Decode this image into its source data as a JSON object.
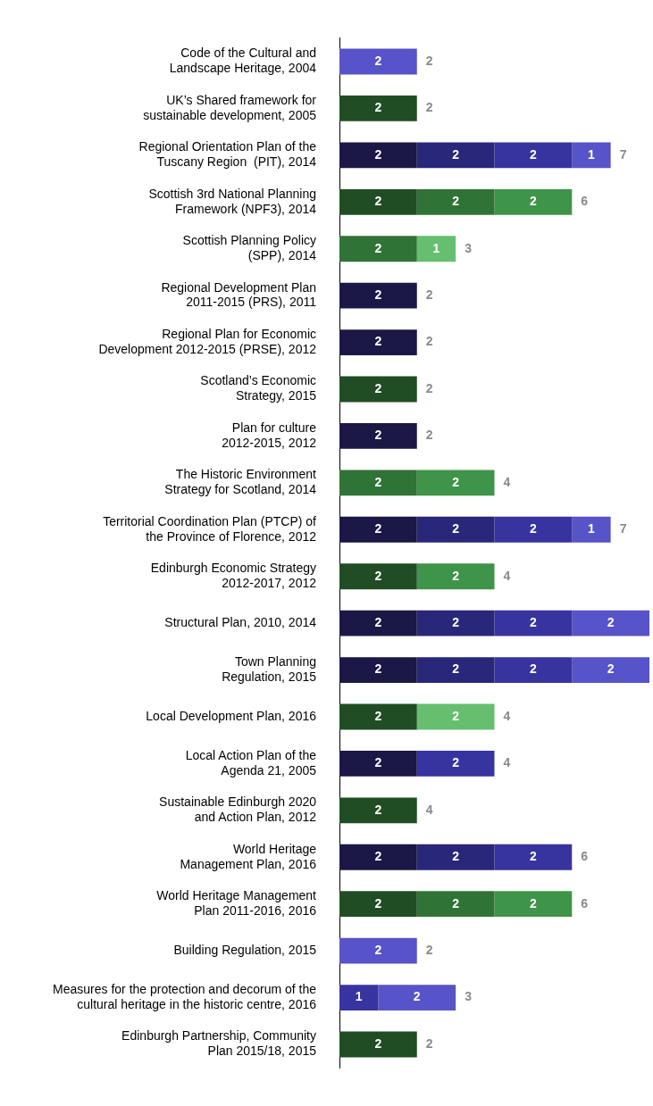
{
  "chart_data": {
    "type": "bar",
    "orientation": "horizontal",
    "stacked": true,
    "grid": false,
    "legend": false,
    "tick_labels": "y",
    "data_labels": true,
    "xlim": [
      0,
      8
    ],
    "categories": [
      "Code of the Cultural and\nLandscape Heritage, 2004",
      "UK’s Shared framework for\nsustainable development, 2005",
      "Regional Orientation Plan of the\nTuscany Region  (PIT), 2014",
      "Scottish 3rd National Planning\nFramework (NPF3), 2014",
      "Scottish Planning Policy\n(SPP), 2014",
      "Regional Development Plan\n2011-2015 (PRS), 2011",
      "Regional Plan for Economic\nDevelopment 2012-2015 (PRSE), 2012",
      "Scotland’s Economic\nStrategy, 2015",
      "Plan for culture\n2012-2015, 2012",
      "The Historic Environment\nStrategy for Scotland, 2014",
      "Territorial Coordination Plan (PTCP) of\nthe Province of Florence, 2012",
      "Edinburgh Economic Strategy\n2012-2017, 2012",
      "Structural Plan, 2010, 2014",
      "Town Planning\nRegulation, 2015",
      "Local Development Plan, 2016",
      "Local Action Plan of the\nAgenda 21, 2005",
      "Sustainable Edinburgh 2020\nand Action Plan, 2012",
      "World Heritage\nManagement Plan, 2016",
      "World Heritage Management\nPlan 2011-2016, 2016",
      "Building Regulation, 2015",
      "Measures for the protection and decorum of the\ncultural heritage in the historic centre, 2016",
      "Edinburgh Partnership, Community\nPlan 2015/18, 2015"
    ],
    "series": [
      {
        "color": "#1b1847",
        "values": [
          null,
          null,
          2,
          null,
          null,
          2,
          2,
          null,
          2,
          null,
          2,
          null,
          2,
          2,
          null,
          2,
          null,
          2,
          null,
          null,
          null,
          null
        ]
      },
      {
        "color": "#29277a",
        "values": [
          null,
          null,
          2,
          null,
          null,
          null,
          null,
          null,
          null,
          null,
          2,
          null,
          2,
          2,
          null,
          null,
          null,
          2,
          null,
          null,
          null,
          null
        ]
      },
      {
        "color": "#3734a0",
        "values": [
          null,
          null,
          2,
          null,
          null,
          null,
          null,
          null,
          null,
          null,
          2,
          null,
          2,
          2,
          null,
          2,
          null,
          2,
          null,
          null,
          1,
          null
        ]
      },
      {
        "color": "#5753c8",
        "values": [
          2,
          null,
          1,
          null,
          null,
          null,
          null,
          null,
          null,
          null,
          1,
          null,
          2,
          2,
          null,
          null,
          null,
          null,
          null,
          2,
          2,
          null
        ]
      },
      {
        "color": "#214d24",
        "values": [
          null,
          2,
          null,
          2,
          null,
          null,
          null,
          2,
          null,
          null,
          null,
          2,
          null,
          null,
          2,
          null,
          2,
          null,
          2,
          null,
          null,
          2
        ]
      },
      {
        "color": "#307336",
        "values": [
          null,
          null,
          null,
          2,
          2,
          null,
          null,
          null,
          null,
          2,
          null,
          null,
          null,
          null,
          null,
          null,
          null,
          null,
          2,
          null,
          null,
          null
        ]
      },
      {
        "color": "#3e9448",
        "values": [
          null,
          null,
          null,
          2,
          null,
          null,
          null,
          null,
          null,
          2,
          null,
          2,
          null,
          null,
          null,
          null,
          null,
          null,
          2,
          null,
          null,
          null
        ]
      },
      {
        "color": "#66bf6e",
        "values": [
          null,
          null,
          null,
          null,
          1,
          null,
          null,
          null,
          null,
          null,
          null,
          null,
          null,
          null,
          2,
          null,
          null,
          null,
          null,
          null,
          null,
          null
        ]
      }
    ],
    "totals": [
      "2",
      "2",
      "7",
      "6",
      "3",
      "2",
      "2",
      "2",
      "2",
      "4",
      "7",
      "4",
      null,
      null,
      "4",
      "4",
      "4",
      "6",
      "6",
      "2",
      "3",
      "2"
    ]
  }
}
